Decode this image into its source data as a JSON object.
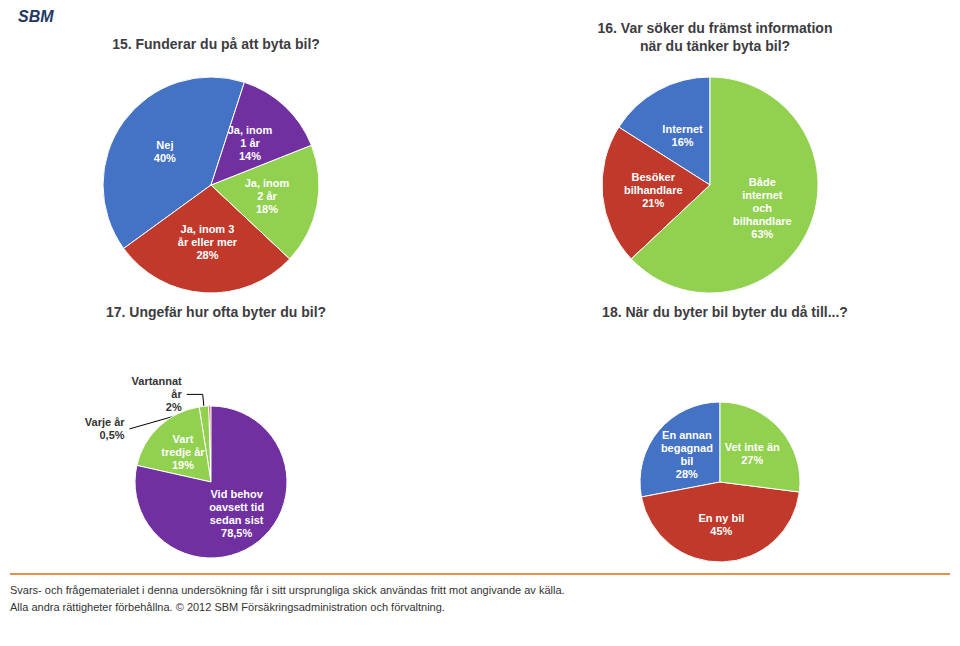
{
  "chart_data": [
    {
      "type": "pie",
      "title": "15. Funderar du på att byta bil?",
      "categories": [
        "Nej",
        "Ja, inom 3\når eller mer",
        "Ja, inom\n2 år",
        "Ja, inom\n1 år"
      ],
      "values": [
        40,
        28,
        18,
        14
      ],
      "value_labels": [
        "40%",
        "28%",
        "18%",
        "14%"
      ],
      "colors": [
        "#4472C4",
        "#C0392B",
        "#92D050",
        "#7030A0"
      ],
      "data_labels": true
    },
    {
      "type": "pie",
      "title": "16. Var söker du främst information\nnär du tänker byta bil?",
      "categories": [
        "Internet",
        "Besöker\nbilhandlare",
        "Både\ninternet\noch\nbilhandlare"
      ],
      "values": [
        16,
        21,
        63
      ],
      "value_labels": [
        "16%",
        "21%",
        "63%"
      ],
      "colors": [
        "#4472C4",
        "#C0392B",
        "#92D050"
      ],
      "data_labels": true
    },
    {
      "type": "pie",
      "title": "17. Ungefär hur ofta byter du bil?",
      "categories": [
        "Varje år",
        "Vartannat\når",
        "Vart\ntredje år",
        "Vid behov\noavsett tid\nsedan sist"
      ],
      "values": [
        0.5,
        2,
        19,
        78.5
      ],
      "value_labels": [
        "0,5%",
        "2%",
        "19%",
        "78,5%"
      ],
      "colors": [
        "#C0392B",
        "#92D050",
        "#92D050",
        "#7030A0"
      ],
      "data_labels": true
    },
    {
      "type": "pie",
      "title": "18. När du byter bil byter du då till...?",
      "categories": [
        "En annan\nbegagnad\nbil",
        "En ny bil",
        "Vet inte än"
      ],
      "values": [
        28,
        45,
        27
      ],
      "value_labels": [
        "28%",
        "45%",
        "27%"
      ],
      "colors": [
        "#4472C4",
        "#C0392B",
        "#92D050"
      ],
      "data_labels": true
    }
  ],
  "logo": "SBM",
  "footer": [
    "Svars- och frågematerialet i denna undersökning får i sitt ursprungliga skick användas fritt mot angivande av källa.",
    "Alla andra rättigheter förbehållna. © 2012 SBM Försäkringsadministration och förvaltning."
  ]
}
